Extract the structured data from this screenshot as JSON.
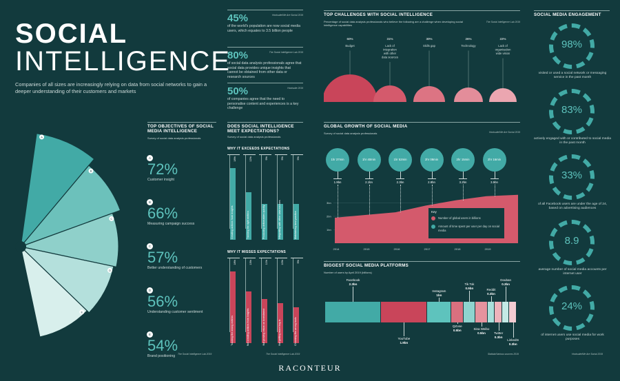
{
  "header": {
    "title1": "SOCIAL",
    "title2": "INTELLIGENCE",
    "intro": "Companies of all sizes are increasingly relying on data from social networks to gain a deeper understanding of their customers and markets"
  },
  "top_stats": [
    {
      "value": "45%",
      "source": "Hootsuite/We Are Social 2019",
      "text": "of the world's population are now social media users, which equates to 3.5 billion people"
    },
    {
      "value": "80%",
      "source": "The Social Intelligence Lab 2019",
      "text": "of social data analysis professionals agree that social data provides unique insights that cannot be obtained from other data or research sources"
    },
    {
      "value": "50%",
      "source": "Hootsuite 2019",
      "text": "of companies agree that the need to personalise content and experiences is a key challenge"
    }
  ],
  "objectives": {
    "title": "TOP OBJECTIVES OF SOCIAL MEDIA INTELLIGENCE",
    "subtitle": "Survey of social data analysis professionals",
    "source": "The Social Intelligence Lab 2019",
    "items": [
      {
        "key": "A",
        "value": "72%",
        "label": "Customer insight"
      },
      {
        "key": "B",
        "value": "66%",
        "label": "Measuring campaign success"
      },
      {
        "key": "C",
        "value": "57%",
        "label": "Better understanding of customers"
      },
      {
        "key": "D",
        "value": "56%",
        "label": "Understanding customer sentiment"
      },
      {
        "key": "E",
        "value": "54%",
        "label": "Brand positioning"
      }
    ]
  },
  "expectations": {
    "title": "DOES SOCIAL INTELLIGENCE MEET EXPECTATIONS?",
    "subtitle": "Survey of social data analysis professionals",
    "source": "The Social Intelligence Lab 2019",
    "exceeds": {
      "title": "WHY IT EXCEEDS EXPECTATIONS",
      "bars": [
        {
          "pct": "18%",
          "label": "Creating actions from insights"
        },
        {
          "pct": "12%",
          "label": "Tracking the right metrics"
        },
        {
          "pct": "9%",
          "label": "Producing deliverables quickly"
        },
        {
          "pct": "9%",
          "label": "Integrating with other data sources"
        },
        {
          "pct": "9%",
          "label": "Maintaining best practice"
        }
      ]
    },
    "misses": {
      "title": "WHY IT MISSES EXPECTATIONS",
      "bars": [
        {
          "pct": "18%",
          "label": "Tracking the wrong metrics"
        },
        {
          "pct": "13%",
          "label": "Not creating actions from insights"
        },
        {
          "pct": "11%",
          "label": "Not proving return on investment"
        },
        {
          "pct": "10%",
          "label": "Not getting more buy-in"
        },
        {
          "pct": "9%",
          "label": "Choosing the wrong tools"
        }
      ]
    }
  },
  "challenges": {
    "title": "TOP CHALLENGES WITH SOCIAL INTELLIGENCE",
    "subtitle": "Percentage of social data analysis professionals who believe the following are a challenge when developing social intelligence capabilities",
    "source": "The Social Intelligence Lab 2019",
    "items": [
      {
        "pct": "60%",
        "label": "Budget"
      },
      {
        "pct": "31%",
        "label": "Lack of integration with other data sources"
      },
      {
        "pct": "30%",
        "label": "Skills gap"
      },
      {
        "pct": "26%",
        "label": "Technology"
      },
      {
        "pct": "22%",
        "label": "Lack of organisation wide vision"
      }
    ]
  },
  "growth": {
    "title": "GLOBAL GROWTH OF SOCIAL MEDIA",
    "subtitle": "Survey of social data analysis professionals",
    "source": "Hootsuite/We Are Social 2019",
    "times": [
      "1hr 37min",
      "1hr 40min",
      "1hr 52min",
      "2hr 08min",
      "2hr 15min",
      "2hr 16min"
    ],
    "users_labels": [
      "1.9bn",
      "2.1bn",
      "2.3bn",
      "2.8bn",
      "3.2bn",
      "3.5bn"
    ],
    "years": [
      "2014",
      "2015",
      "2016",
      "2017",
      "2018",
      "2019"
    ],
    "yticks": [
      "3bn",
      "2bn",
      "1bn"
    ],
    "key_title": "Key",
    "key_users": "Number of global users in billions",
    "key_time": "Amount of time spent per user per day on social media",
    "users": [
      1.9,
      2.1,
      2.3,
      2.8,
      3.2,
      3.5
    ]
  },
  "platforms": {
    "title": "BIGGEST SOCIAL MEDIA PLATFORMS",
    "subtitle": "Number of users by April 2019 (billions)",
    "source": "Statista/Various sources 2019",
    "items": [
      {
        "name": "Facebook",
        "value": "2.3bn",
        "v": 2.3,
        "color": "#42aaa6"
      },
      {
        "name": "YouTube",
        "value": "1.9bn",
        "v": 1.9,
        "color": "#c9455a"
      },
      {
        "name": "Instagram",
        "value": "1bn",
        "v": 1.0,
        "color": "#5ec3bd"
      },
      {
        "name": "QZone",
        "value": "0.5bn",
        "v": 0.5,
        "color": "#d9707f"
      },
      {
        "name": "Tik Tok",
        "value": "0.5bn",
        "v": 0.5,
        "color": "#8ed4cf"
      },
      {
        "name": "Sina Weibo",
        "value": "0.5bn",
        "v": 0.5,
        "color": "#e5939e"
      },
      {
        "name": "Reddit",
        "value": "0.3bn",
        "v": 0.3,
        "color": "#a8e0db"
      },
      {
        "name": "Twitter",
        "value": "0.3bn",
        "v": 0.3,
        "color": "#eeb3bb"
      },
      {
        "name": "Douban",
        "value": "0.3bn",
        "v": 0.3,
        "color": "#c4eae6"
      },
      {
        "name": "LinkedIn",
        "value": "0.3bn",
        "v": 0.3,
        "color": "#f4ccd2"
      }
    ]
  },
  "engagement": {
    "title": "SOCIAL MEDIA ENGAGEMENT",
    "source": "Hootsuite/We Are Social 2019",
    "items": [
      {
        "value": "98%",
        "text": "visited or used a social network or messaging service in the past month"
      },
      {
        "value": "83%",
        "text": "actively engaged with or contributed to social media in the past month"
      },
      {
        "value": "33%",
        "text": "of all Facebook users are under the age of 24, based on advertising audiences"
      },
      {
        "value": "8.9",
        "text": "average number of social media accounts per internet user"
      },
      {
        "value": "24%",
        "text": "of internet users use social media for work purposes"
      }
    ]
  },
  "footer": {
    "brand": "RACONTEUR"
  }
}
